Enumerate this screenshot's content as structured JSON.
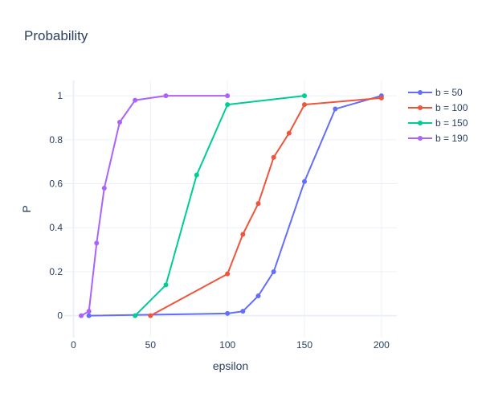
{
  "chart_data": {
    "type": "line",
    "title": "Probability",
    "xlabel": "epsilon",
    "ylabel": "P",
    "xlim": [
      -6,
      210
    ],
    "ylim": [
      -0.1,
      1.07
    ],
    "xticks": [
      0,
      50,
      100,
      150,
      200
    ],
    "yticks": [
      0,
      0.2,
      0.4,
      0.6,
      0.8,
      1
    ],
    "grid": true,
    "legend_position": "top-right",
    "series": [
      {
        "name": "b = 50",
        "color": "#636efa",
        "x": [
          10,
          100,
          110,
          120,
          130,
          150,
          170,
          200
        ],
        "y": [
          0.0,
          0.01,
          0.02,
          0.09,
          0.2,
          0.61,
          0.94,
          1.0
        ]
      },
      {
        "name": "b = 100",
        "color": "#ef553b",
        "x": [
          50,
          100,
          110,
          120,
          130,
          140,
          150,
          200
        ],
        "y": [
          0.0,
          0.19,
          0.37,
          0.51,
          0.72,
          0.83,
          0.96,
          0.99
        ]
      },
      {
        "name": "b = 150",
        "color": "#00cc96",
        "x": [
          40,
          60,
          80,
          100,
          150
        ],
        "y": [
          0.0,
          0.14,
          0.64,
          0.96,
          1.0
        ]
      },
      {
        "name": "b = 190",
        "color": "#ab63fa",
        "x": [
          5,
          10,
          15,
          20,
          30,
          40,
          60,
          100
        ],
        "y": [
          0.0,
          0.02,
          0.33,
          0.58,
          0.88,
          0.98,
          1.0,
          1.0
        ]
      }
    ]
  }
}
